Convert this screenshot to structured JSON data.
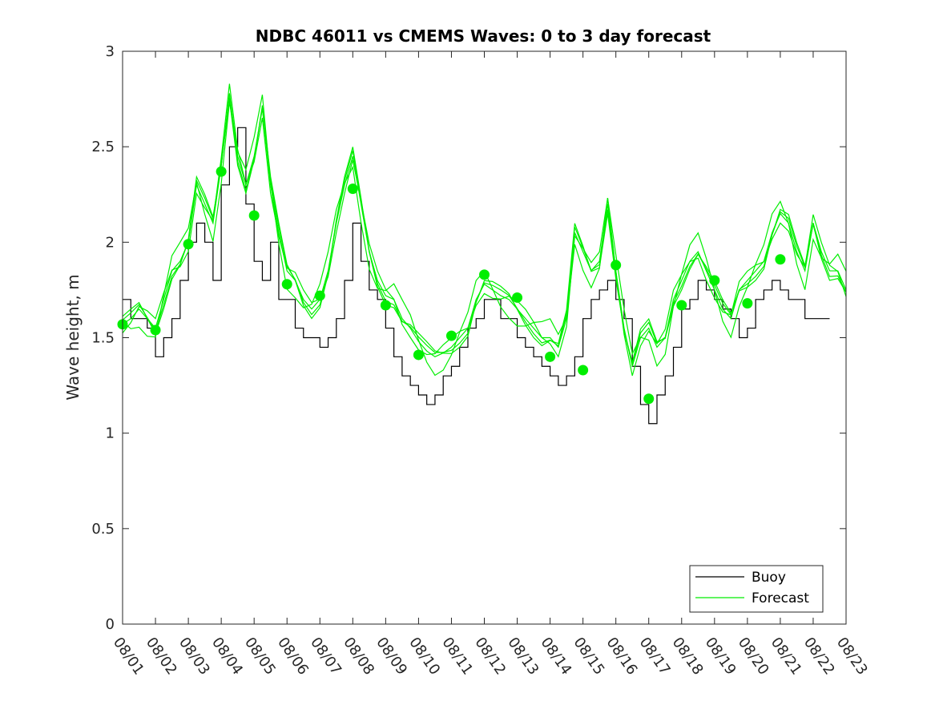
{
  "chart_data": {
    "type": "line",
    "title": "NDBC 46011 vs CMEMS Waves: 0 to 3 day forecast",
    "xlabel": "",
    "ylabel": "Wave height, m",
    "xlim": [
      0,
      22
    ],
    "ylim": [
      0,
      3
    ],
    "x_tick_labels": [
      "08/01",
      "08/02",
      "08/03",
      "08/04",
      "08/05",
      "08/06",
      "08/07",
      "08/08",
      "08/09",
      "08/10",
      "08/11",
      "08/12",
      "08/13",
      "08/14",
      "08/15",
      "08/16",
      "08/17",
      "08/18",
      "08/19",
      "08/20",
      "08/21",
      "08/22",
      "08/23"
    ],
    "y_ticks": [
      0,
      0.5,
      1,
      1.5,
      2,
      2.5,
      3
    ],
    "y_tick_labels": [
      "0",
      "0.5",
      "1",
      "1.5",
      "2",
      "2.5",
      "3"
    ],
    "legend": {
      "position": "bottom-right",
      "entries": [
        "Buoy",
        "Forecast"
      ]
    },
    "colors": {
      "buoy": "#000000",
      "forecast": "#00ee00"
    },
    "series": [
      {
        "name": "Buoy",
        "x": [
          0,
          0.25,
          0.5,
          0.75,
          1,
          1.25,
          1.5,
          1.75,
          2,
          2.25,
          2.5,
          2.75,
          3,
          3.25,
          3.5,
          3.75,
          4,
          4.25,
          4.5,
          4.75,
          5,
          5.25,
          5.5,
          5.75,
          6,
          6.25,
          6.5,
          6.75,
          7,
          7.25,
          7.5,
          7.75,
          8,
          8.25,
          8.5,
          8.75,
          9,
          9.25,
          9.5,
          9.75,
          10,
          10.25,
          10.5,
          10.75,
          11,
          11.25,
          11.5,
          11.75,
          12,
          12.25,
          12.5,
          12.75,
          13,
          13.25,
          13.5,
          13.75,
          14,
          14.25,
          14.5,
          14.75,
          15,
          15.25,
          15.5,
          15.75,
          16,
          16.25,
          16.5,
          16.75,
          17,
          17.25,
          17.5,
          17.75,
          18,
          18.25,
          18.5,
          18.75,
          19,
          19.25,
          19.5,
          19.75,
          20,
          20.25,
          20.5,
          20.75,
          21,
          21.25,
          21.5
        ],
        "values": [
          1.7,
          1.6,
          1.6,
          1.55,
          1.4,
          1.5,
          1.6,
          1.8,
          2.0,
          2.1,
          2.0,
          1.8,
          2.3,
          2.5,
          2.6,
          2.2,
          1.9,
          1.8,
          2.0,
          1.7,
          1.7,
          1.55,
          1.5,
          1.5,
          1.45,
          1.5,
          1.6,
          1.8,
          2.1,
          1.9,
          1.75,
          1.7,
          1.55,
          1.4,
          1.3,
          1.25,
          1.2,
          1.15,
          1.2,
          1.3,
          1.35,
          1.45,
          1.55,
          1.6,
          1.7,
          1.7,
          1.6,
          1.6,
          1.5,
          1.45,
          1.4,
          1.35,
          1.3,
          1.25,
          1.3,
          1.4,
          1.6,
          1.7,
          1.75,
          1.8,
          1.7,
          1.6,
          1.35,
          1.15,
          1.05,
          1.2,
          1.3,
          1.45,
          1.65,
          1.7,
          1.8,
          1.75,
          1.7,
          1.65,
          1.6,
          1.5,
          1.55,
          1.7,
          1.75,
          1.8,
          1.75,
          1.7,
          1.7,
          1.6,
          1.6,
          1.6,
          1.6
        ]
      },
      {
        "name": "Forecast",
        "x": [
          0,
          0.25,
          0.5,
          0.75,
          1,
          1.25,
          1.5,
          1.75,
          2,
          2.25,
          2.5,
          2.75,
          3,
          3.25,
          3.5,
          3.75,
          4,
          4.25,
          4.5,
          4.75,
          5,
          5.25,
          5.5,
          5.75,
          6,
          6.25,
          6.5,
          6.75,
          7,
          7.25,
          7.5,
          7.75,
          8,
          8.25,
          8.5,
          8.75,
          9,
          9.25,
          9.5,
          9.75,
          10,
          10.25,
          10.5,
          10.75,
          11,
          11.25,
          11.5,
          11.75,
          12,
          12.25,
          12.5,
          12.75,
          13,
          13.25,
          13.5,
          13.75,
          14,
          14.25,
          14.5,
          14.75,
          15,
          15.25,
          15.5,
          15.75,
          16,
          16.25,
          16.5,
          16.75,
          17,
          17.25,
          17.5,
          17.75,
          18,
          18.25,
          18.5,
          18.75,
          19,
          19.25,
          19.5,
          19.75,
          20,
          20.25,
          20.5,
          20.75,
          21,
          21.25,
          21.5,
          21.75,
          22
        ],
        "values": [
          1.57,
          1.6,
          1.65,
          1.6,
          1.55,
          1.7,
          1.85,
          1.9,
          2.0,
          2.3,
          2.2,
          2.1,
          2.4,
          2.78,
          2.45,
          2.3,
          2.45,
          2.7,
          2.3,
          2.05,
          1.85,
          1.8,
          1.7,
          1.65,
          1.7,
          1.85,
          2.1,
          2.3,
          2.45,
          2.2,
          1.95,
          1.8,
          1.72,
          1.7,
          1.6,
          1.55,
          1.48,
          1.43,
          1.4,
          1.42,
          1.45,
          1.5,
          1.55,
          1.7,
          1.78,
          1.75,
          1.72,
          1.7,
          1.65,
          1.6,
          1.55,
          1.5,
          1.5,
          1.45,
          1.6,
          2.05,
          1.95,
          1.85,
          1.9,
          2.2,
          1.85,
          1.55,
          1.35,
          1.5,
          1.55,
          1.45,
          1.5,
          1.7,
          1.8,
          1.9,
          1.95,
          1.85,
          1.75,
          1.65,
          1.6,
          1.75,
          1.8,
          1.85,
          1.9,
          2.05,
          2.15,
          2.1,
          1.95,
          1.85,
          2.1,
          1.95,
          1.85,
          1.85,
          1.75
        ]
      }
    ],
    "analysis_points": {
      "x": [
        0,
        1,
        2,
        3,
        4,
        5,
        6,
        7,
        8,
        9,
        10,
        11,
        12,
        13,
        14,
        15,
        16,
        17,
        18,
        19,
        20,
        21
      ],
      "values": [
        1.57,
        1.54,
        1.99,
        2.37,
        2.14,
        1.78,
        1.72,
        2.28,
        1.67,
        1.41,
        1.51,
        1.83,
        1.71,
        1.4,
        1.33,
        1.88,
        1.18,
        1.67,
        1.8,
        1.68,
        1.91,
        null
      ]
    }
  }
}
